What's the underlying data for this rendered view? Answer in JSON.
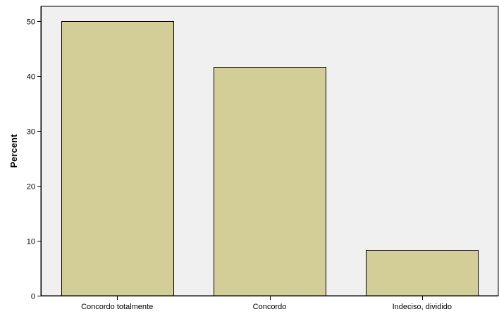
{
  "chart_data": {
    "type": "bar",
    "title": "",
    "xlabel": "",
    "ylabel": "Percent",
    "categories": [
      "Concordo totalmente",
      "Concordo",
      "Indeciso, dividido"
    ],
    "values": [
      50.0,
      41.7,
      8.3
    ],
    "ylim": [
      0,
      52.7
    ],
    "yticks": [
      0,
      10,
      20,
      30,
      40,
      50
    ],
    "grid": false,
    "legend": "none",
    "colors": {
      "bar_fill": "#d3ce98",
      "bar_stroke": "#000000",
      "plot_background": "#f0f0f0",
      "axis": "#000000"
    }
  }
}
